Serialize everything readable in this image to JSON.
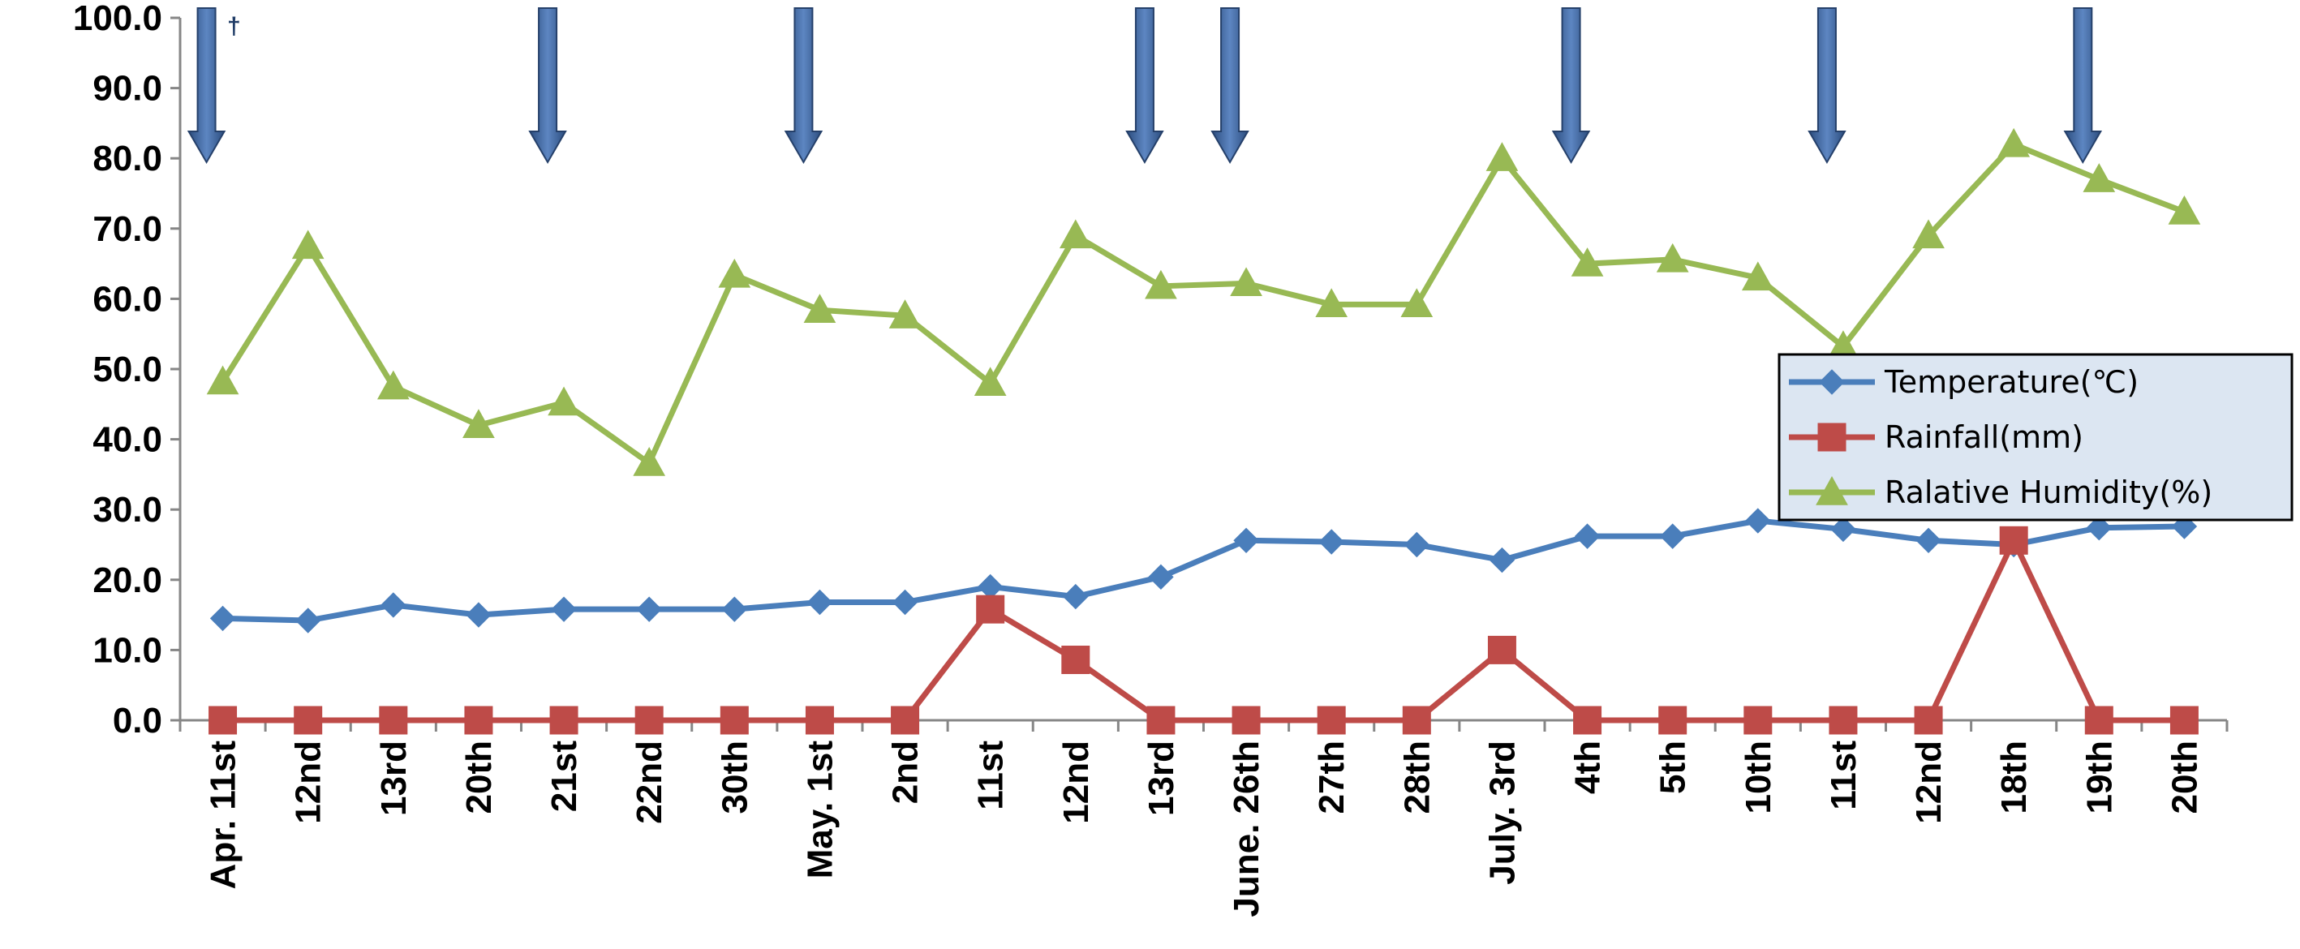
{
  "chart_data": {
    "type": "line",
    "categories": [
      "Apr. 11st",
      "12nd",
      "13rd",
      "20th",
      "21st",
      "22nd",
      "30th",
      "May. 1st",
      "2nd",
      "11st",
      "12nd",
      "13rd",
      "June. 26th",
      "27th",
      "28th",
      "July. 3rd",
      "4th",
      "5th",
      "10th",
      "11st",
      "12nd",
      "18th",
      "19th",
      "20th"
    ],
    "y_tick_labels": [
      "0.0",
      "10.0",
      "20.0",
      "30.0",
      "40.0",
      "50.0",
      "60.0",
      "70.0",
      "80.0",
      "90.0",
      "100.0"
    ],
    "ylim": [
      0,
      100
    ],
    "legend_position": "right",
    "marker_note": "†",
    "arrow_positions": [
      0,
      4,
      7,
      11,
      12,
      16,
      19,
      22
    ],
    "series": [
      {
        "name": "Temperature(℃)",
        "color": "#4a7ebb",
        "marker": "diamond",
        "values": [
          14.5,
          14.2,
          16.4,
          15.0,
          15.8,
          15.8,
          15.8,
          16.8,
          16.8,
          19.0,
          17.6,
          20.4,
          25.6,
          25.4,
          25.0,
          22.8,
          26.2,
          26.2,
          28.4,
          27.2,
          25.6,
          25.0,
          27.4,
          27.6
        ]
      },
      {
        "name": "Rainfall(mm)",
        "color": "#be4b48",
        "marker": "square",
        "values": [
          0,
          0,
          0,
          0,
          0,
          0,
          0,
          0,
          0,
          15.8,
          8.6,
          0,
          0,
          0,
          0,
          10.0,
          0,
          0,
          0,
          0,
          0,
          25.6,
          0,
          0
        ]
      },
      {
        "name": "Ralative Humidity(%)",
        "color": "#98b954",
        "marker": "triangle",
        "values": [
          48.2,
          67.5,
          47.5,
          42.0,
          45.2,
          36.6,
          63.4,
          58.4,
          57.6,
          48.0,
          69.0,
          61.8,
          62.2,
          59.2,
          59.2,
          80.0,
          65.0,
          65.6,
          63.0,
          53.2,
          69.0,
          82.0,
          77.0,
          72.4
        ]
      }
    ]
  }
}
